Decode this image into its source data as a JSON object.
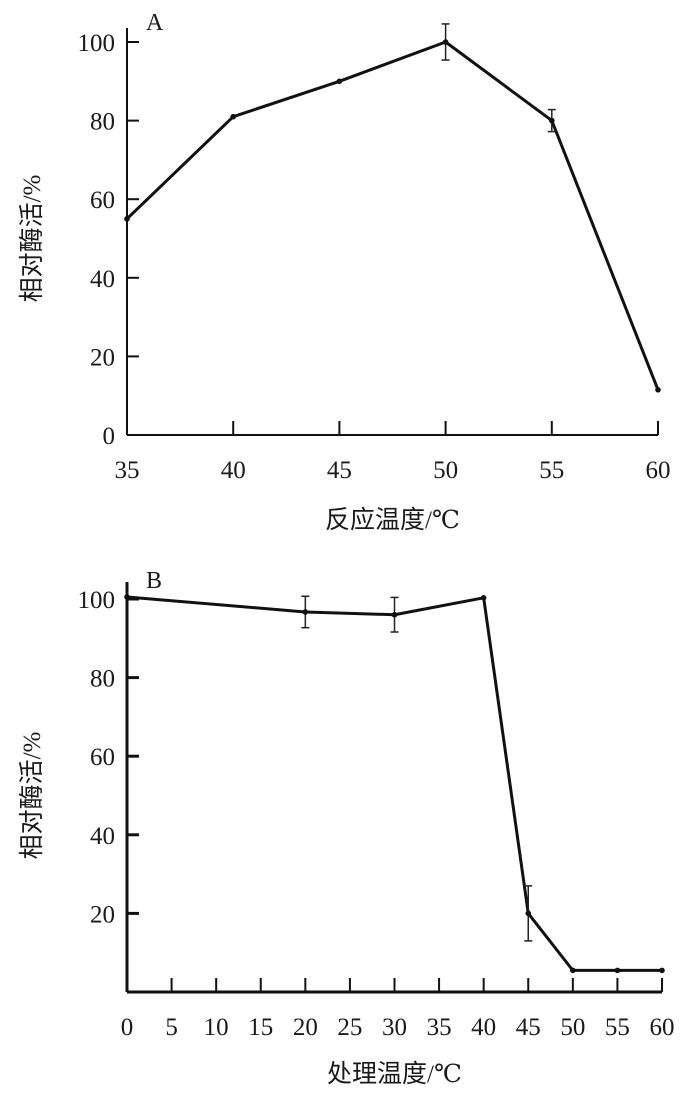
{
  "chart_data": [
    {
      "type": "line",
      "panel_label": "A",
      "xlabel": "反应温度/℃",
      "ylabel": "相对酶活/%",
      "xlim": [
        35,
        60
      ],
      "ylim": [
        0,
        100
      ],
      "xticks": [
        "35",
        "40",
        "45",
        "50",
        "55",
        "60"
      ],
      "yticks": [
        "0",
        "20",
        "40",
        "60",
        "80",
        "100"
      ],
      "grid": false,
      "x": [
        35,
        40,
        45,
        50,
        55,
        60
      ],
      "y": [
        55,
        81,
        90,
        100,
        80,
        11.5
      ],
      "error": [
        0.5,
        0.6,
        0.6,
        4.6,
        2.8,
        1
      ]
    },
    {
      "type": "line",
      "panel_label": "B",
      "xlabel": "处理温度/℃",
      "ylabel": "相对酶活/%",
      "xlim": [
        0,
        60
      ],
      "ylim": [
        0,
        100
      ],
      "xticks": [
        "0",
        "5",
        "10",
        "15",
        "20",
        "25",
        "30",
        "35",
        "40",
        "45",
        "50",
        "55",
        "60"
      ],
      "yticks": [
        "20",
        "40",
        "60",
        "80",
        "100"
      ],
      "grid": false,
      "x": [
        0,
        20,
        30,
        40,
        45,
        50,
        55,
        60
      ],
      "y": [
        100.5,
        96.7,
        96,
        100.3,
        20,
        5.5,
        5.5,
        5.5
      ],
      "error": [
        0.6,
        4,
        4.4,
        0.8,
        7,
        0.3,
        0.3,
        0.3
      ]
    }
  ]
}
